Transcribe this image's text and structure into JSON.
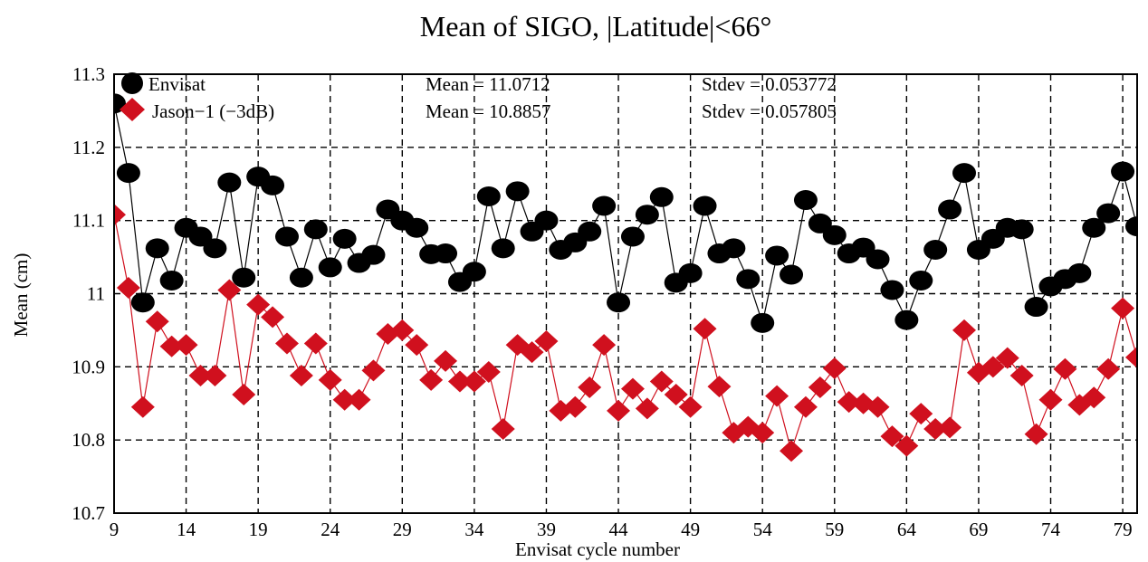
{
  "chart_data": {
    "type": "line",
    "title": "Mean of SIGO, |Latitude|<66°",
    "xlabel": "Envisat cycle number",
    "ylabel": "Mean (cm)",
    "xlim": [
      9,
      80
    ],
    "ylim": [
      10.7,
      11.3
    ],
    "xticks": [
      9,
      14,
      19,
      24,
      29,
      34,
      39,
      44,
      49,
      54,
      59,
      64,
      69,
      74,
      79
    ],
    "yticks": [
      10.7,
      10.8,
      10.9,
      11,
      11.1,
      11.2,
      11.3
    ],
    "ytick_labels": [
      "10.7",
      "10.8",
      "10.9",
      "11",
      "11.1",
      "11.2",
      "11.3"
    ],
    "grid": true,
    "legend_position": "top-left",
    "series": [
      {
        "name": "Envisat",
        "marker": "circle",
        "color": "#000000",
        "stats_mean": "Mean = 11.0712",
        "stats_stdev": "Stdev = 0.053772",
        "x": [
          9,
          10,
          11,
          12,
          13,
          14,
          15,
          16,
          17,
          18,
          19,
          20,
          21,
          22,
          23,
          24,
          25,
          26,
          27,
          28,
          29,
          30,
          31,
          32,
          33,
          34,
          35,
          36,
          37,
          38,
          39,
          40,
          41,
          42,
          43,
          44,
          45,
          46,
          47,
          48,
          49,
          50,
          51,
          52,
          53,
          54,
          55,
          56,
          57,
          58,
          59,
          60,
          61,
          62,
          63,
          64,
          65,
          66,
          67,
          68,
          69,
          70,
          71,
          72,
          73,
          74,
          75,
          76,
          77,
          78,
          79,
          80
        ],
        "values": [
          11.26,
          11.165,
          10.988,
          11.062,
          11.018,
          11.09,
          11.078,
          11.062,
          11.152,
          11.022,
          11.16,
          11.148,
          11.078,
          11.022,
          11.088,
          11.036,
          11.075,
          11.042,
          11.053,
          11.115,
          11.1,
          11.09,
          11.054,
          11.055,
          11.016,
          11.03,
          11.133,
          11.062,
          11.14,
          11.085,
          11.1,
          11.06,
          11.07,
          11.085,
          11.12,
          10.988,
          11.078,
          11.108,
          11.132,
          11.015,
          11.028,
          11.12,
          11.055,
          11.062,
          11.02,
          10.96,
          11.052,
          11.026,
          11.128,
          11.096,
          11.08,
          11.055,
          11.063,
          11.047,
          11.005,
          10.964,
          11.018,
          11.06,
          11.115,
          11.165,
          11.06,
          11.075,
          11.09,
          11.088,
          10.982,
          11.01,
          11.02,
          11.028,
          11.09,
          11.11,
          11.167,
          11.092
        ]
      },
      {
        "name": "Jason−1 (−3dB)",
        "marker": "diamond",
        "color": "#d0101e",
        "stats_mean": "Mean = 10.8857",
        "stats_stdev": "Stdev = 0.057805",
        "x": [
          9,
          10,
          11,
          12,
          13,
          14,
          15,
          16,
          17,
          18,
          19,
          20,
          21,
          22,
          23,
          24,
          25,
          26,
          27,
          28,
          29,
          30,
          31,
          32,
          33,
          34,
          35,
          36,
          37,
          38,
          39,
          40,
          41,
          42,
          43,
          44,
          45,
          46,
          47,
          48,
          49,
          50,
          51,
          52,
          53,
          54,
          55,
          56,
          57,
          58,
          59,
          60,
          61,
          62,
          63,
          64,
          65,
          66,
          67,
          68,
          69,
          70,
          71,
          72,
          73,
          74,
          75,
          76,
          77,
          78,
          79,
          80
        ],
        "values": [
          11.108,
          11.008,
          10.845,
          10.962,
          10.928,
          10.93,
          10.888,
          10.888,
          11.005,
          10.862,
          10.985,
          10.968,
          10.932,
          10.888,
          10.932,
          10.882,
          10.855,
          10.855,
          10.895,
          10.945,
          10.95,
          10.93,
          10.882,
          10.908,
          10.88,
          10.88,
          10.893,
          10.815,
          10.93,
          10.92,
          10.935,
          10.84,
          10.845,
          10.872,
          10.93,
          10.84,
          10.87,
          10.843,
          10.88,
          10.862,
          10.845,
          10.952,
          10.873,
          10.81,
          10.818,
          10.81,
          10.86,
          10.785,
          10.845,
          10.872,
          10.898,
          10.852,
          10.85,
          10.845,
          10.805,
          10.792,
          10.836,
          10.815,
          10.817,
          10.95,
          10.892,
          10.9,
          10.912,
          10.888,
          10.808,
          10.855,
          10.897,
          10.848,
          10.858,
          10.897,
          10.98,
          10.913
        ]
      }
    ]
  }
}
